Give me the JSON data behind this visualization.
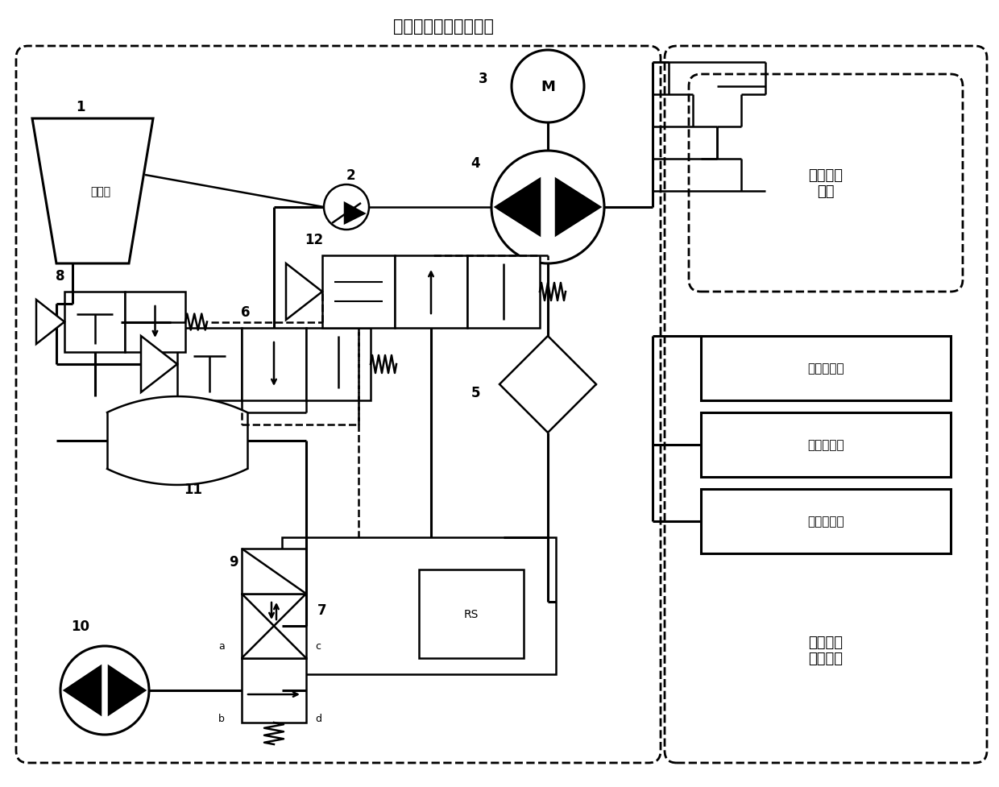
{
  "title": "液压气动组合驱动模块",
  "bg": "#ffffff",
  "lc": "#000000",
  "comp1_label": "液压油",
  "comp3_label": "M",
  "ctrl_label": "运算控制\n模块",
  "temp_label": "温度传感器",
  "salt_label": "盐度传感器",
  "depth_label": "深度传感器",
  "env_label": "海洋环境\n感知模块",
  "rs_label": "RS"
}
